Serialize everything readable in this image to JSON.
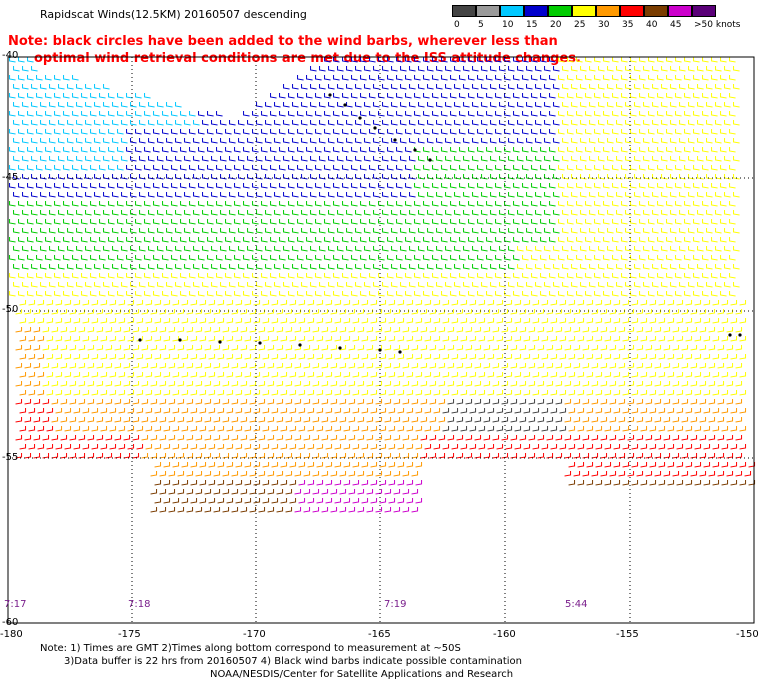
{
  "title": "Rapidscat Winds(12.5KM) 20160507 descending",
  "note": [
    "Note: black circles have been added to the wind barbs, wherever less than",
    "optimal wind retrieval conditions are met due to the ISS attitude changes."
  ],
  "legend": {
    "labels": [
      "0",
      "5",
      "10",
      "15",
      "20",
      "25",
      "30",
      "35",
      "40",
      "45",
      ">50 knots"
    ],
    "colors": [
      "#444444",
      "#9a9a9a",
      "#00c8ff",
      "#0000cc",
      "#00cc00",
      "#ffff00",
      "#ff9900",
      "#ff0000",
      "#7a3c00",
      "#cc00cc",
      "#5a0078"
    ]
  },
  "axis": {
    "x_ticks": [
      "-180",
      "-175",
      "-170",
      "-165",
      "-160",
      "-155",
      "-150"
    ],
    "y_ticks": [
      "-40",
      "-45",
      "-50",
      "-55",
      "-60"
    ]
  },
  "times": [
    "7:17",
    "7:18",
    "7:19",
    "5:44"
  ],
  "footer": [
    "Note: 1) Times are GMT 2)Times along bottom correspond to measurement at ~50S",
    "3)Data buffer is 22 hrs from 20160507 4) Black wind barbs indicate possible contamination"
  ],
  "credit": "NOAA/NESDIS/Center for Satellite Applications and Research"
}
